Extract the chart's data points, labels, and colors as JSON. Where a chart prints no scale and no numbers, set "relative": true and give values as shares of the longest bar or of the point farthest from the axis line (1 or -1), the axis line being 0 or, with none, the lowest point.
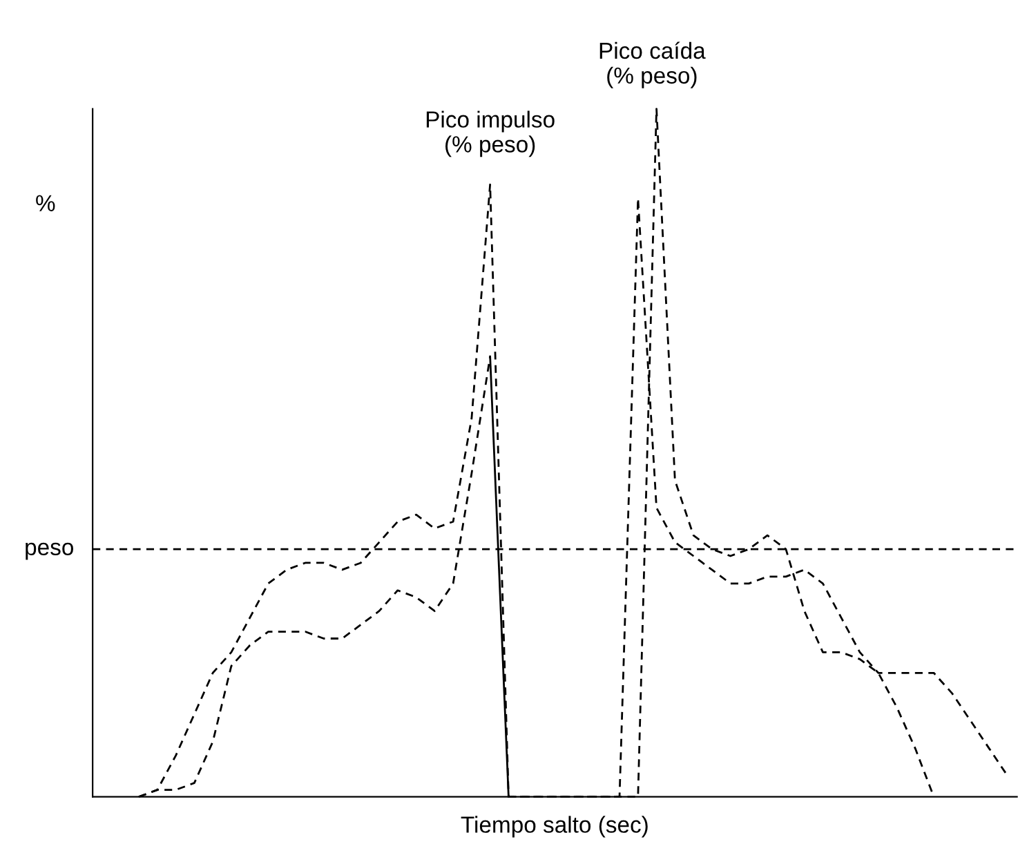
{
  "chart_data": {
    "type": "line",
    "relative": true,
    "xlabel": "Tiempo salto (sec)",
    "ylabel": "%",
    "tick_labels": false,
    "grid": false,
    "legend": false,
    "marker": "none",
    "categories": [
      null,
      null,
      null,
      null,
      null,
      null,
      null,
      null,
      null,
      null,
      null,
      null,
      null,
      null,
      null,
      null,
      null,
      null,
      null,
      null,
      null,
      null,
      null,
      null,
      null,
      null,
      null,
      null,
      null,
      null,
      null,
      null,
      null,
      null,
      null,
      null,
      null,
      null,
      null,
      null,
      null,
      null,
      null,
      null,
      null,
      null,
      null,
      null,
      null,
      null
    ],
    "series": [
      {
        "color": "#000000",
        "line_style": "dashed",
        "values": [
          null,
          null,
          0.0,
          0.01,
          0.06,
          0.12,
          0.18,
          0.21,
          0.26,
          0.31,
          0.33,
          0.34,
          0.34,
          0.33,
          0.34,
          0.37,
          0.4,
          0.41,
          0.39,
          0.4,
          0.55,
          0.89,
          0.0,
          0.0,
          0.0,
          0.0,
          0.0,
          0.0,
          0.0,
          0.0,
          1.0,
          0.46,
          0.38,
          0.36,
          0.35,
          0.36,
          0.38,
          0.36,
          0.27,
          0.21,
          0.21,
          0.2,
          0.18,
          0.13,
          0.07,
          0.0,
          null,
          null,
          null,
          null
        ]
      },
      {
        "color": "#000000",
        "line_style": "dashed",
        "values": [
          null,
          null,
          0.0,
          0.01,
          0.01,
          0.02,
          0.08,
          0.19,
          0.22,
          0.24,
          0.24,
          0.24,
          0.23,
          0.23,
          0.25,
          0.27,
          0.3,
          0.29,
          0.27,
          0.31,
          0.47,
          0.64,
          null,
          null,
          null,
          null,
          null,
          null,
          null,
          null,
          null,
          null,
          null,
          null,
          null,
          null,
          null,
          null,
          null,
          null,
          null,
          null,
          null,
          null,
          null,
          null,
          null,
          null,
          null,
          null
        ]
      },
      {
        "color": "#000000",
        "line_style": "solid",
        "values": [
          null,
          null,
          null,
          null,
          null,
          null,
          null,
          null,
          null,
          null,
          null,
          null,
          null,
          null,
          null,
          null,
          null,
          null,
          null,
          null,
          null,
          0.64,
          0.0,
          null,
          null,
          null,
          null,
          null,
          null,
          null,
          null,
          null,
          null,
          null,
          null,
          null,
          null,
          null,
          null,
          null,
          null,
          null,
          null,
          null,
          null,
          null,
          null,
          null,
          null,
          null
        ]
      },
      {
        "color": "#000000",
        "line_style": "dashed",
        "values": [
          null,
          null,
          null,
          null,
          null,
          null,
          null,
          null,
          null,
          null,
          null,
          null,
          null,
          null,
          null,
          null,
          null,
          null,
          null,
          null,
          null,
          null,
          0.0,
          0.0,
          0.0,
          0.0,
          0.0,
          0.0,
          0.0,
          0.87,
          0.42,
          0.37,
          0.35,
          0.33,
          0.31,
          0.31,
          0.32,
          0.32,
          0.33,
          0.31,
          0.26,
          0.21,
          0.18,
          0.18,
          0.18,
          0.18,
          0.15,
          0.11,
          0.07,
          0.03
        ]
      }
    ],
    "ref_lines": [
      {
        "axis": "y",
        "value": 0.36,
        "label": "peso",
        "color": "#000000",
        "line_style": "dashed"
      }
    ],
    "annotations": [
      "Pico impulso\n(% peso)",
      "Pico caída\n(% peso)"
    ]
  }
}
